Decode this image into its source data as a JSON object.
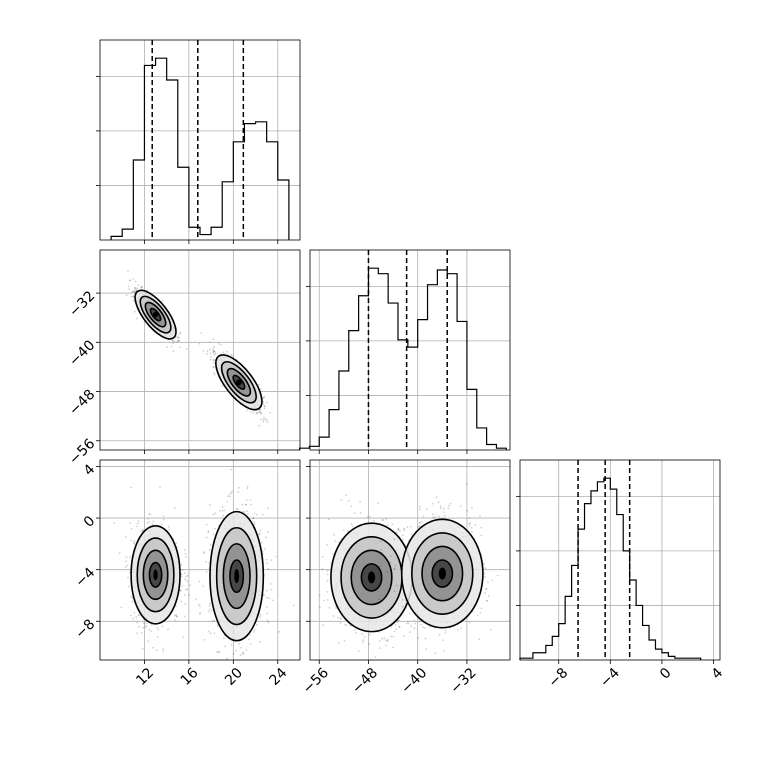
{
  "chart_data": [
    {
      "type": "histogram",
      "panel": "marginal-x",
      "bin_edges": [
        9.0,
        10.0,
        11.0,
        12.0,
        13.0,
        14.0,
        15.0,
        16.0,
        17.0,
        18.0,
        19.0,
        20.0,
        21.0,
        22.0,
        23.0,
        24.0,
        25.0
      ],
      "heights": [
        2,
        6,
        44,
        96,
        100,
        88,
        40,
        7,
        3,
        7,
        32,
        54,
        64,
        65,
        54,
        33
      ],
      "note_heights": "relative bin heights; y-axis carries no tick labels",
      "quantile_lines": [
        12.7,
        16.8,
        20.9
      ],
      "xlim": [
        8.0,
        26.0
      ],
      "x_ticks": [
        12,
        16,
        20,
        24
      ],
      "grid": true
    },
    {
      "type": "histogram",
      "panel": "marginal-y",
      "bin_edges": [
        -59.2,
        -57.6,
        -56.0,
        -54.4,
        -52.8,
        -51.2,
        -49.6,
        -48.0,
        -46.4,
        -44.8,
        -43.2,
        -41.6,
        -40.0,
        -38.4,
        -36.8,
        -35.2,
        -33.6,
        -32.0,
        -30.4,
        -28.8,
        -27.2,
        -25.6
      ],
      "heights": [
        1,
        2,
        7,
        22,
        43,
        65,
        84,
        99,
        96,
        80,
        60,
        56,
        71,
        90,
        98,
        96,
        70,
        33,
        12,
        3,
        1
      ],
      "quantile_lines": [
        -48.0,
        -41.8,
        -35.2
      ],
      "xlim": [
        -57.5,
        -25.0
      ],
      "x_ticks": [
        -56,
        -48,
        -40,
        -32
      ],
      "grid": true
    },
    {
      "type": "histogram",
      "panel": "marginal-z",
      "bin_edges": [
        -11.0,
        -10.0,
        -9.0,
        -8.5,
        -8.0,
        -7.5,
        -7.0,
        -6.5,
        -6.0,
        -5.5,
        -5.0,
        -4.5,
        -4.0,
        -3.5,
        -3.0,
        -2.5,
        -2.0,
        -1.5,
        -1.0,
        -0.5,
        0.0,
        0.5,
        1.0,
        2.0,
        3.0
      ],
      "heights": [
        1,
        4,
        8,
        13,
        20,
        35,
        52,
        72,
        86,
        93,
        98,
        100,
        94,
        80,
        60,
        44,
        30,
        19,
        11,
        6,
        4,
        2,
        1,
        1
      ],
      "quantile_lines": [
        -6.5,
        -4.4,
        -2.5
      ],
      "xlim": [
        -11.0,
        4.5
      ],
      "x_ticks": [
        -8,
        -4,
        0,
        4
      ],
      "grid": true
    },
    {
      "type": "scatter",
      "panel": "joint-x-y",
      "xlim": [
        8.0,
        26.0
      ],
      "ylim": [
        -57.5,
        -25.0
      ],
      "y_ticks": [
        -32,
        -40,
        -48,
        -56
      ],
      "grid": true,
      "clusters": [
        {
          "center": [
            13.0,
            -35.5
          ],
          "sd_major": 1.2,
          "sd_minor": 0.35,
          "angle_deg": -52
        },
        {
          "center": [
            20.5,
            -46.5
          ],
          "sd_major": 1.35,
          "sd_minor": 0.4,
          "angle_deg": -52
        }
      ]
    },
    {
      "type": "scatter",
      "panel": "joint-x-z",
      "xlim": [
        8.0,
        26.0
      ],
      "ylim": [
        -11.0,
        4.5
      ],
      "x_ticks": [
        12,
        16,
        20,
        24
      ],
      "y_ticks": [
        4,
        0,
        -4,
        -8
      ],
      "grid": true,
      "clusters": [
        {
          "center": [
            13.0,
            -4.4
          ],
          "sd_x": 1.1,
          "sd_y": 1.9
        },
        {
          "center": [
            20.3,
            -4.5
          ],
          "sd_x": 1.2,
          "sd_y": 2.5
        }
      ]
    },
    {
      "type": "scatter",
      "panel": "joint-y-z",
      "xlim": [
        -57.5,
        -25.0
      ],
      "ylim": [
        -11.0,
        4.5
      ],
      "x_ticks": [
        -56,
        -48,
        -40,
        -32
      ],
      "grid": true,
      "clusters": [
        {
          "center": [
            -47.5,
            -4.6
          ],
          "sd_x": 3.3,
          "sd_y": 2.1
        },
        {
          "center": [
            -36.0,
            -4.3
          ],
          "sd_x": 3.3,
          "sd_y": 2.1
        }
      ]
    }
  ]
}
